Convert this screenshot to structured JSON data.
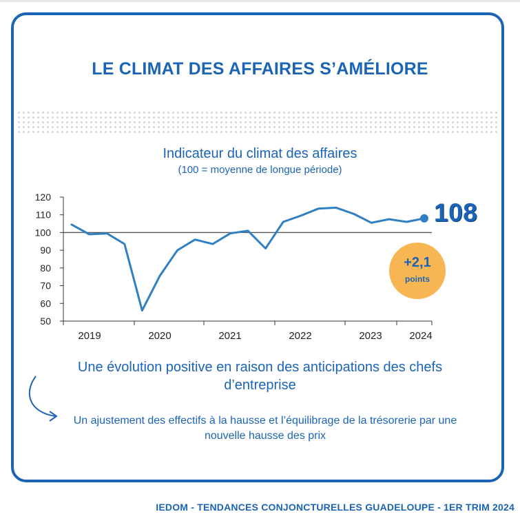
{
  "title": "LE CLIMAT DES AFFAIRES S’AMÉLIORE",
  "footer": "IEDOM - TENDANCES CONJONCTURELLES GUADELOUPE - 1ER TRIM 2024",
  "callout": {
    "value": "108",
    "change": "+2,1",
    "change_unit": "points"
  },
  "notes": {
    "main": "Une évolution positive en raison des anticipations des chefs d’entreprise",
    "secondary": "Un ajustement des effectifs à la hausse et l’équilibrage de la trésorerie par une nouvelle hausse des prix"
  },
  "colors": {
    "brand": "#1b64b5",
    "badge": "#f8b653",
    "line": "#2f7fc3",
    "reference": "#555555"
  },
  "chart_data": {
    "type": "line",
    "title": "Indicateur du climat des affaires",
    "subtitle": "(100 = moyenne de longue période)",
    "xlabel": "",
    "ylabel": "",
    "ylim": [
      50,
      120
    ],
    "yticks": [
      50,
      60,
      70,
      80,
      90,
      100,
      110,
      120
    ],
    "xticks": [
      "2019",
      "2020",
      "2021",
      "2022",
      "2023",
      "2024"
    ],
    "reference_line": 100,
    "grid": false,
    "x": [
      "2019-T1",
      "2019-T2",
      "2019-T3",
      "2019-T4",
      "2020-T1",
      "2020-T2",
      "2020-T3",
      "2020-T4",
      "2021-T1",
      "2021-T2",
      "2021-T3",
      "2021-T4",
      "2022-T1",
      "2022-T2",
      "2022-T3",
      "2022-T4",
      "2023-T1",
      "2023-T2",
      "2023-T3",
      "2023-T4",
      "2024-T1"
    ],
    "series": [
      {
        "values": [
          104.5,
          99,
          99.5,
          93.5,
          56,
          75.5,
          90,
          96,
          93.5,
          99.5,
          101,
          91,
          106,
          109.5,
          113.5,
          114,
          110.5,
          105.5,
          107.5,
          106,
          108
        ]
      }
    ]
  }
}
